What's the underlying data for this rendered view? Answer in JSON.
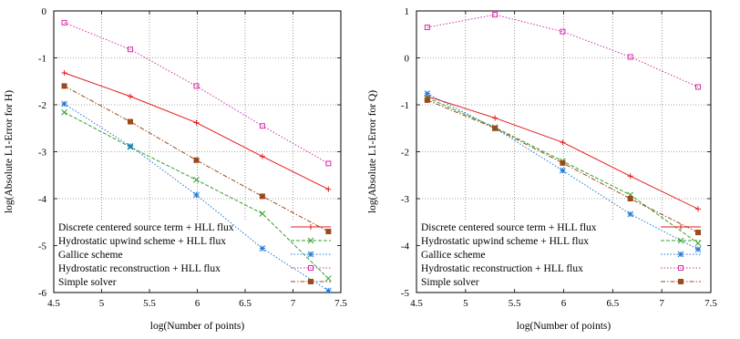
{
  "chart_data": [
    {
      "type": "line",
      "xlabel": "log(Number of points)",
      "ylabel": "log(Absolute L1-Error for H)",
      "xlim": [
        4.5,
        7.5
      ],
      "ylim": [
        -6,
        0
      ],
      "xticks": [
        "4.5",
        "5",
        "5.5",
        "6",
        "6.5",
        "7",
        "7.5"
      ],
      "yticks": [
        "-6",
        "-5",
        "-4",
        "-3",
        "-2",
        "-1",
        "0"
      ],
      "grid": true,
      "legend": "bottom-right",
      "series": [
        {
          "name": "Discrete centered source term + HLL flux",
          "color": "#e41a1c",
          "style": "solid",
          "marker": "plus",
          "x": [
            4.61,
            5.3,
            5.99,
            6.68,
            7.37
          ],
          "y": [
            -1.32,
            -1.82,
            -2.38,
            -3.1,
            -3.8
          ]
        },
        {
          "name": "Hydrostatic upwind scheme + HLL flux",
          "color": "#33a02c",
          "style": "dashed",
          "marker": "cross",
          "x": [
            4.61,
            5.3,
            5.99,
            6.68,
            7.37
          ],
          "y": [
            -2.16,
            -2.9,
            -3.6,
            -4.32,
            -5.7
          ]
        },
        {
          "name": "Gallice scheme",
          "color": "#1f78d4",
          "style": "dotted",
          "marker": "star",
          "x": [
            4.61,
            5.3,
            5.99,
            6.68,
            7.37
          ],
          "y": [
            -1.98,
            -2.88,
            -3.92,
            -5.06,
            -5.96
          ]
        },
        {
          "name": "Hydrostatic reconstruction + HLL flux",
          "color": "#d42ca6",
          "style": "dotted",
          "marker": "square-open",
          "x": [
            4.61,
            5.3,
            5.99,
            6.68,
            7.37
          ],
          "y": [
            -0.25,
            -0.82,
            -1.6,
            -2.45,
            -3.25
          ]
        },
        {
          "name": "Simple solver",
          "color": "#9c4a1a",
          "style": "dashdot",
          "marker": "square-filled",
          "x": [
            4.61,
            5.3,
            5.99,
            6.68,
            7.37
          ],
          "y": [
            -1.6,
            -2.36,
            -3.18,
            -3.95,
            -4.7
          ]
        }
      ]
    },
    {
      "type": "line",
      "xlabel": "log(Number of points)",
      "ylabel": "log(Absolute L1-Error for Q)",
      "xlim": [
        4.5,
        7.5
      ],
      "ylim": [
        -5,
        1
      ],
      "xticks": [
        "4.5",
        "5",
        "5.5",
        "6",
        "6.5",
        "7",
        "7.5"
      ],
      "yticks": [
        "-5",
        "-4",
        "-3",
        "-2",
        "-1",
        "0",
        "1"
      ],
      "grid": true,
      "legend": "bottom-right",
      "series": [
        {
          "name": "Discrete centered source term + HLL flux",
          "color": "#e41a1c",
          "style": "solid",
          "marker": "plus",
          "x": [
            4.61,
            5.3,
            5.99,
            6.68,
            7.37
          ],
          "y": [
            -0.82,
            -1.28,
            -1.8,
            -2.52,
            -3.22
          ]
        },
        {
          "name": "Hydrostatic upwind scheme + HLL flux",
          "color": "#33a02c",
          "style": "dashed",
          "marker": "cross",
          "x": [
            4.61,
            5.3,
            5.99,
            6.68,
            7.37
          ],
          "y": [
            -0.85,
            -1.48,
            -2.2,
            -2.92,
            -3.95
          ]
        },
        {
          "name": "Gallice scheme",
          "color": "#1f78d4",
          "style": "dotted",
          "marker": "star",
          "x": [
            4.61,
            5.3,
            5.99,
            6.68,
            7.37
          ],
          "y": [
            -0.76,
            -1.5,
            -2.4,
            -3.33,
            -4.08
          ]
        },
        {
          "name": "Hydrostatic reconstruction + HLL flux",
          "color": "#d42ca6",
          "style": "dotted",
          "marker": "square-open",
          "x": [
            4.61,
            5.3,
            5.99,
            6.68,
            7.37
          ],
          "y": [
            0.65,
            0.92,
            0.56,
            0.02,
            -0.62
          ]
        },
        {
          "name": "Simple solver",
          "color": "#9c4a1a",
          "style": "dashdot",
          "marker": "square-filled",
          "x": [
            4.61,
            5.3,
            5.99,
            6.68,
            7.37
          ],
          "y": [
            -0.9,
            -1.5,
            -2.24,
            -3.0,
            -3.72
          ]
        }
      ]
    }
  ]
}
